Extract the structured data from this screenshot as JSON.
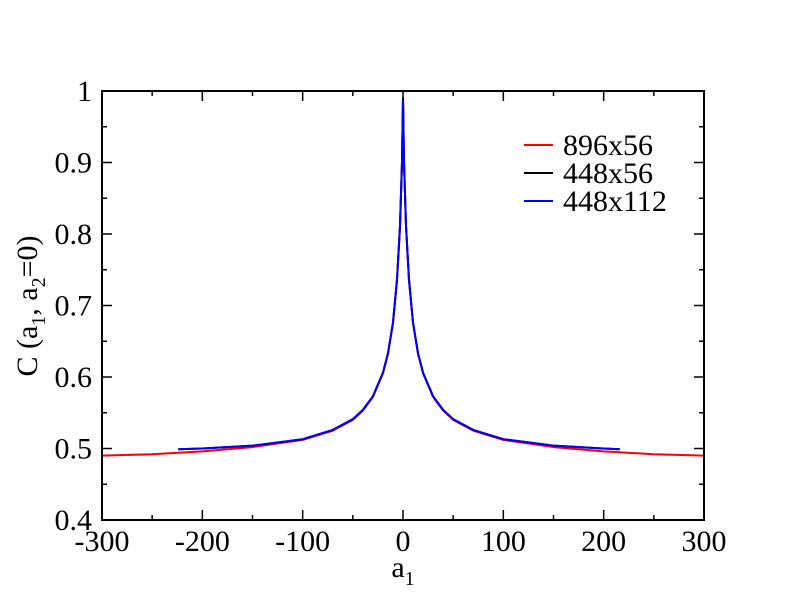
{
  "chart_data": {
    "type": "line",
    "title": "",
    "xlabel_main": "a",
    "xlabel_sub": "1",
    "ylabel_parts": [
      "C (a",
      "1",
      ", a",
      "2",
      "=0)"
    ],
    "xlim": [
      -300,
      300
    ],
    "ylim": [
      0.4,
      1.0
    ],
    "x_ticks": [
      -300,
      -200,
      -100,
      0,
      100,
      200,
      300
    ],
    "x_tick_labels": [
      "-300",
      "-200",
      "-100",
      "0",
      "100",
      "200",
      "300"
    ],
    "y_ticks": [
      0.4,
      0.5,
      0.6,
      0.7,
      0.8,
      0.9,
      1.0
    ],
    "y_tick_labels": [
      "0.4",
      "0.5",
      "0.6",
      "0.7",
      "0.8",
      "0.9",
      "1"
    ],
    "x_minor_step": 50,
    "y_minor_step": 0.05,
    "grid": false,
    "legend_position": "top-right",
    "series": [
      {
        "name": "896x56",
        "color": "#ff0000",
        "points": [
          [
            -300,
            0.49
          ],
          [
            -250,
            0.492
          ],
          [
            -200,
            0.496
          ],
          [
            -150,
            0.502
          ],
          [
            -100,
            0.512
          ],
          [
            -70,
            0.525
          ],
          [
            -50,
            0.54
          ],
          [
            -40,
            0.553
          ],
          [
            -30,
            0.572
          ],
          [
            -20,
            0.605
          ],
          [
            -15,
            0.632
          ],
          [
            -10,
            0.675
          ],
          [
            -6,
            0.735
          ],
          [
            -3,
            0.81
          ],
          [
            -1,
            0.9
          ],
          [
            0,
            0.99
          ],
          [
            1,
            0.9
          ],
          [
            3,
            0.81
          ],
          [
            6,
            0.735
          ],
          [
            10,
            0.675
          ],
          [
            15,
            0.632
          ],
          [
            20,
            0.605
          ],
          [
            30,
            0.572
          ],
          [
            40,
            0.553
          ],
          [
            50,
            0.54
          ],
          [
            70,
            0.525
          ],
          [
            100,
            0.512
          ],
          [
            150,
            0.502
          ],
          [
            200,
            0.496
          ],
          [
            250,
            0.492
          ],
          [
            300,
            0.49
          ]
        ]
      },
      {
        "name": "448x56",
        "color": "#000000",
        "points": [
          [
            -224,
            0.499
          ],
          [
            -200,
            0.5
          ],
          [
            -150,
            0.504
          ],
          [
            -100,
            0.513
          ],
          [
            -70,
            0.526
          ],
          [
            -50,
            0.541
          ],
          [
            -40,
            0.554
          ],
          [
            -30,
            0.573
          ],
          [
            -20,
            0.606
          ],
          [
            -15,
            0.633
          ],
          [
            -10,
            0.676
          ],
          [
            -6,
            0.736
          ],
          [
            -3,
            0.811
          ],
          [
            -1,
            0.901
          ],
          [
            0,
            0.99
          ],
          [
            1,
            0.901
          ],
          [
            3,
            0.811
          ],
          [
            6,
            0.736
          ],
          [
            10,
            0.676
          ],
          [
            15,
            0.633
          ],
          [
            20,
            0.606
          ],
          [
            30,
            0.573
          ],
          [
            40,
            0.554
          ],
          [
            50,
            0.541
          ],
          [
            70,
            0.526
          ],
          [
            100,
            0.513
          ],
          [
            150,
            0.504
          ],
          [
            200,
            0.5
          ],
          [
            216,
            0.499
          ]
        ]
      },
      {
        "name": "448x112",
        "color": "#0000ff",
        "points": [
          [
            -224,
            0.499
          ],
          [
            -200,
            0.5
          ],
          [
            -150,
            0.504
          ],
          [
            -100,
            0.513
          ],
          [
            -70,
            0.526
          ],
          [
            -50,
            0.541
          ],
          [
            -40,
            0.554
          ],
          [
            -30,
            0.573
          ],
          [
            -20,
            0.606
          ],
          [
            -15,
            0.633
          ],
          [
            -10,
            0.676
          ],
          [
            -6,
            0.736
          ],
          [
            -3,
            0.811
          ],
          [
            -1,
            0.901
          ],
          [
            0,
            0.99
          ],
          [
            1,
            0.901
          ],
          [
            3,
            0.811
          ],
          [
            6,
            0.736
          ],
          [
            10,
            0.676
          ],
          [
            15,
            0.633
          ],
          [
            20,
            0.606
          ],
          [
            30,
            0.573
          ],
          [
            40,
            0.554
          ],
          [
            50,
            0.541
          ],
          [
            70,
            0.526
          ],
          [
            100,
            0.513
          ],
          [
            150,
            0.504
          ],
          [
            200,
            0.5
          ],
          [
            216,
            0.499
          ]
        ]
      }
    ]
  }
}
